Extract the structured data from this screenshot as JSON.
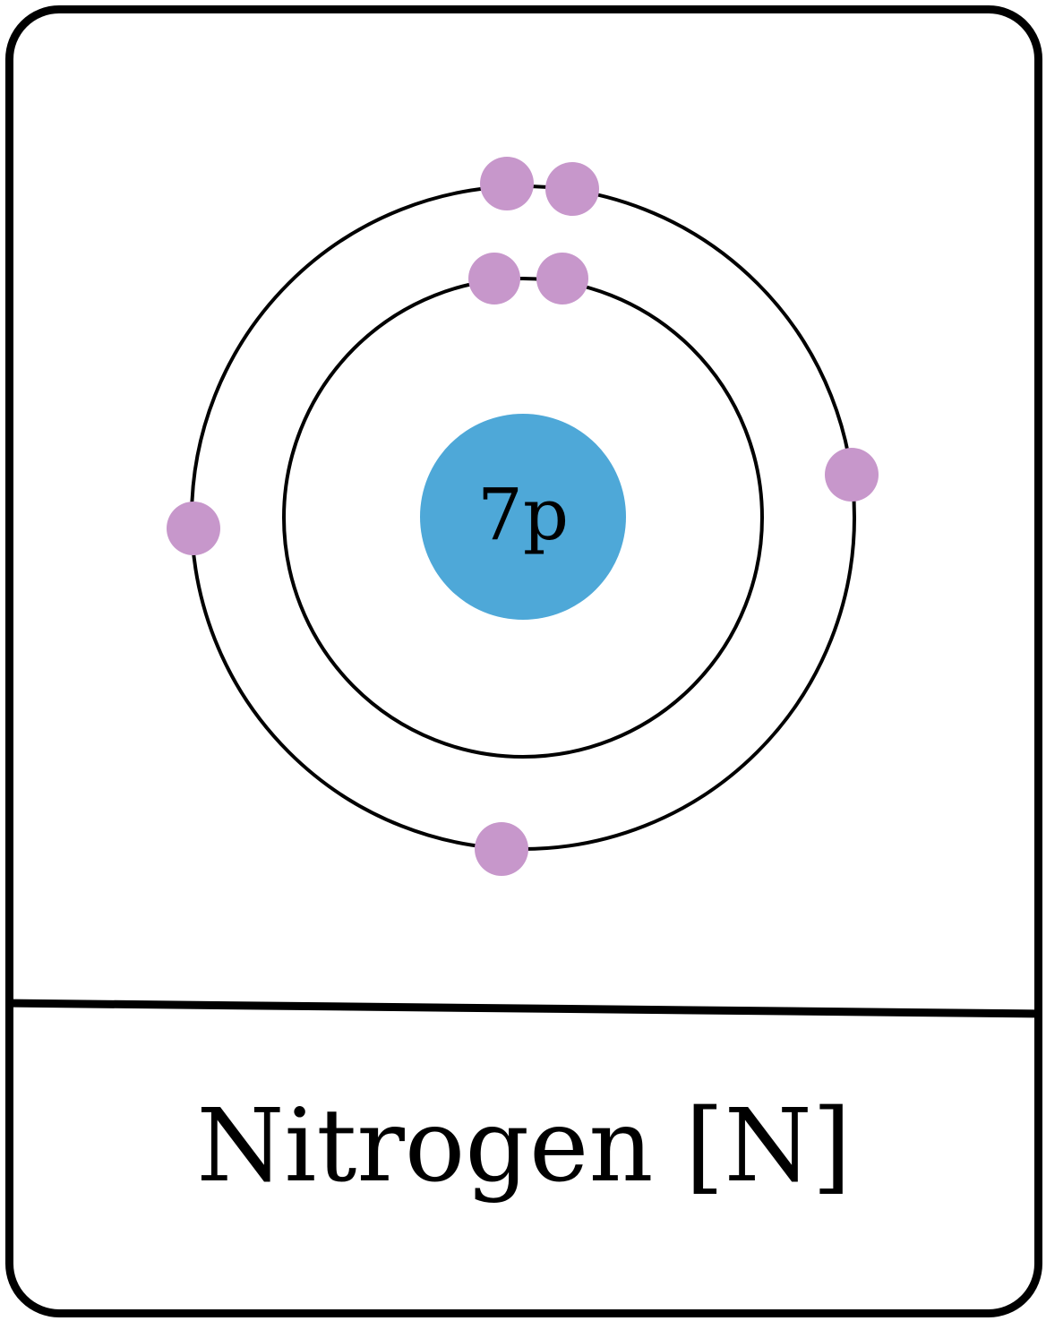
{
  "element": {
    "name_label": "Nitrogen [N]",
    "nucleus_label": "7p",
    "protons": 7
  },
  "shells": [
    {
      "shell": 1,
      "electrons": 2
    },
    {
      "shell": 2,
      "electrons": 5
    }
  ],
  "colors": {
    "nucleus": "#4ea8d8",
    "electron": "#c797cb",
    "line": "#000000",
    "background": "#ffffff"
  }
}
